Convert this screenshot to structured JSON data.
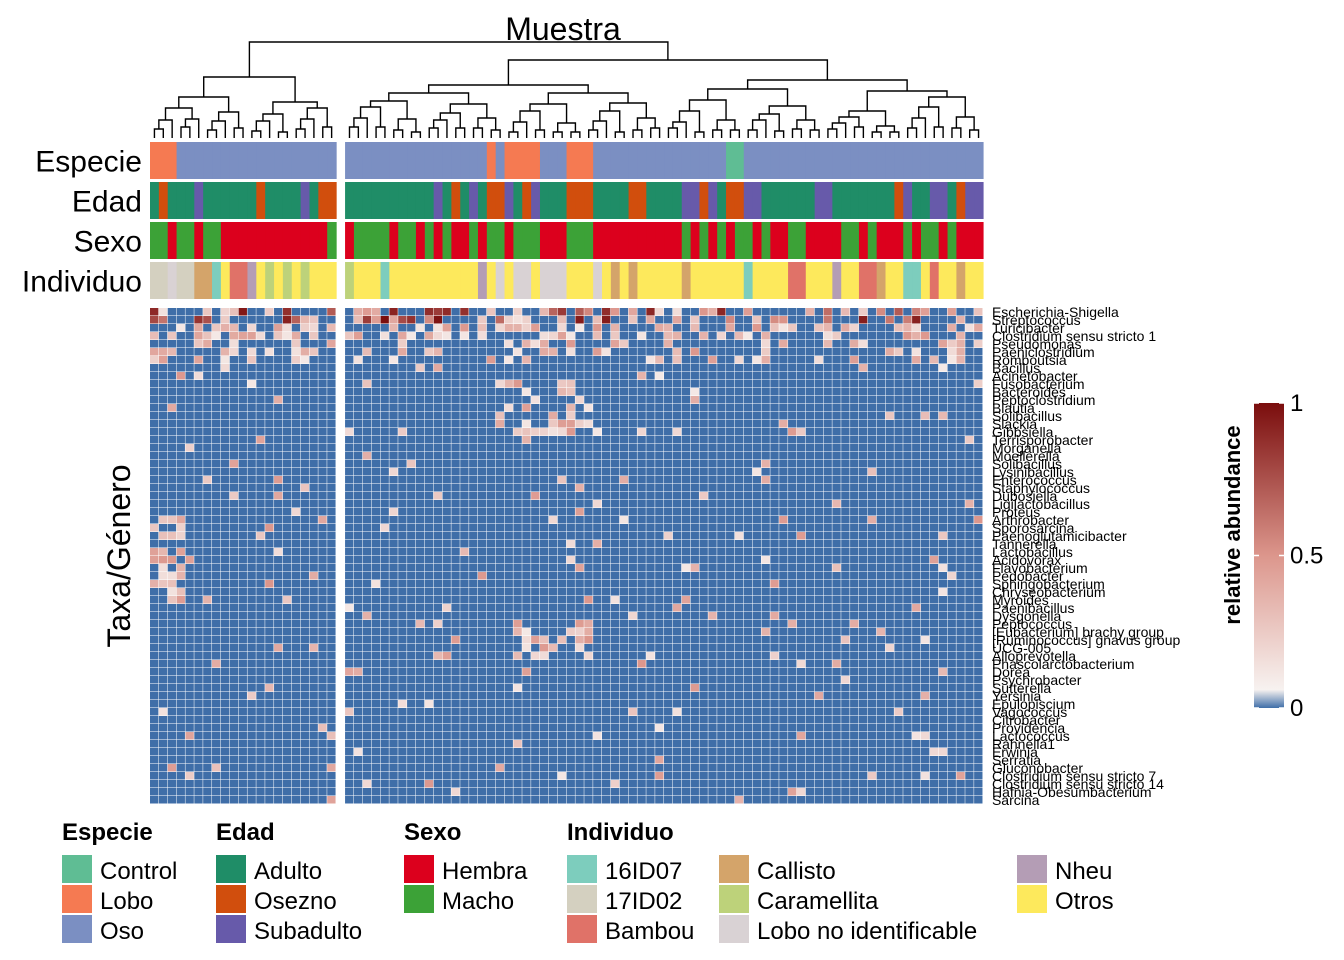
{
  "chart_data": {
    "type": "heatmap",
    "title": "Muestra",
    "ylabel": "Taxa/Género",
    "colorbar": {
      "title": "relative abundance",
      "ticks": [
        0,
        0.5,
        1
      ],
      "tick_labels": [
        "0",
        "0.5",
        "1"
      ],
      "low_color": "#3f6ea8",
      "mid_color": "#f7f2f0",
      "high_color": "#7a0d0d",
      "range": [
        0,
        1
      ]
    },
    "columns": 93,
    "column_gap_after": 21,
    "annotation_tracks": [
      "Especie",
      "Edad",
      "Sexo",
      "Individuo"
    ],
    "taxa": [
      "Escherichia-Shigella",
      "Streptococcus",
      "Turicibacter",
      "Clostridium sensu stricto 1",
      "Pseudomonas",
      "Paeniclostridium",
      "Romboutsia",
      "Bacillus",
      "Acinetobacter",
      "Fusobacterium",
      "Bacteroides",
      "Peptoclostridium",
      "Blautia",
      "Solibacillus",
      "Slackia",
      "Gibbsiella",
      "Terrisporobacter",
      "Morganella",
      "Moellerella",
      "Solibacillus",
      "Lysinibacillus",
      "Enterococcus",
      "Staphylococcus",
      "Dubosiella",
      "Ligilactobacillus",
      "Proteus",
      "Arthrobacter",
      "Sporosarcina",
      "Paenoglutamicibacter",
      "Tannerella",
      "Lactobacillus",
      "Acidovorax",
      "Flavobacterium",
      "Pedobacter",
      "Sphingobacterium",
      "Chryseobacterium",
      "Myroides",
      "Paenibacillus",
      "Dysgonella",
      "Peptococcus",
      "[Eubacterium] brachy group",
      "[Ruminococcus] gnavus group",
      "UCG-005",
      "Alloprevotella",
      "Phascolarctobacterium",
      "Dorea",
      "Psychrobacter",
      "Sutterella",
      "Yersinia",
      "Epulopiscium",
      "Vagococcus",
      "Citrobacter",
      "Providencia",
      "Lactococcus",
      "Rahnella1",
      "Erwinia",
      "Serratia",
      "Gluconobacter",
      "Clostridium sensu stricto 7",
      "Clostridium sensu stricto 14",
      "Hafnia-Obesumbacterium",
      "Sarcina"
    ],
    "legend": {
      "Especie": {
        "title": "Especie",
        "items": [
          {
            "label": "Control",
            "color": "#5fbd94"
          },
          {
            "label": "Lobo",
            "color": "#f57a52"
          },
          {
            "label": "Oso",
            "color": "#7b8fc2"
          }
        ]
      },
      "Edad": {
        "title": "Edad",
        "items": [
          {
            "label": "Adulto",
            "color": "#1f8d67"
          },
          {
            "label": "Osezno",
            "color": "#d14e0d"
          },
          {
            "label": "Subadulto",
            "color": "#675aaa"
          }
        ]
      },
      "Sexo": {
        "title": "Sexo",
        "items": [
          {
            "label": "Hembra",
            "color": "#dc001d"
          },
          {
            "label": "Macho",
            "color": "#3ca237"
          }
        ]
      },
      "Individuo": {
        "title": "Individuo",
        "items": [
          {
            "label": "16ID07",
            "color": "#7dcdbd"
          },
          {
            "label": "17ID02",
            "color": "#d4d0c0"
          },
          {
            "label": "Bambou",
            "color": "#e07268"
          },
          {
            "label": "Callisto",
            "color": "#d4a46a"
          },
          {
            "label": "Caramellita",
            "color": "#bdd27a"
          },
          {
            "label": "Lobo no identificable",
            "color": "#d9d2d4"
          },
          {
            "label": "Nheu",
            "color": "#b49db5"
          },
          {
            "label": "Otros",
            "color": "#fde95c"
          }
        ]
      }
    }
  }
}
